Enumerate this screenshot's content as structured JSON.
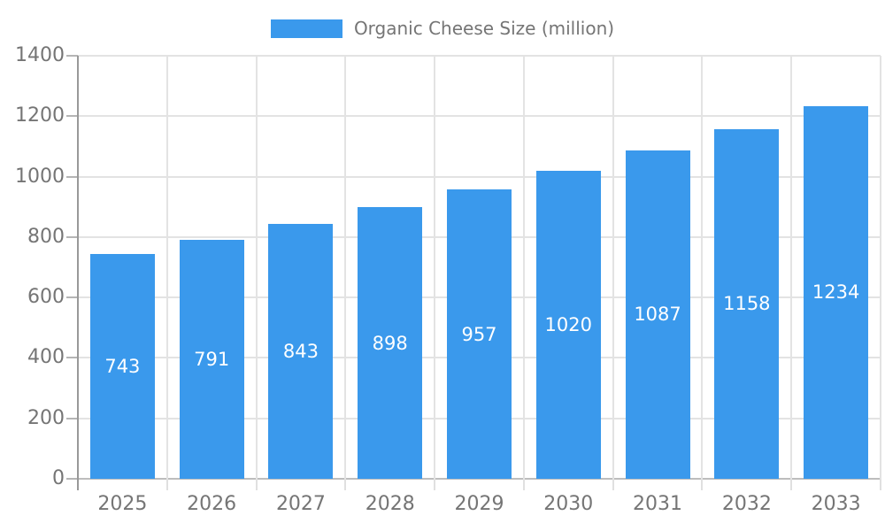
{
  "chart_data": {
    "type": "bar",
    "title": "Organic Cheese Size (million)",
    "categories": [
      "2025",
      "2026",
      "2027",
      "2028",
      "2029",
      "2030",
      "2031",
      "2032",
      "2033"
    ],
    "values": [
      743,
      791,
      843,
      898,
      957,
      1020,
      1087,
      1158,
      1234
    ],
    "xlabel": "",
    "ylabel": "",
    "ylim": [
      0,
      1400
    ],
    "yticks": [
      0,
      200,
      400,
      600,
      800,
      1000,
      1200,
      1400
    ],
    "grid": true,
    "legend_position": "top",
    "value_labels": "inside-middle",
    "colors": {
      "bar": "#3a99ec",
      "axis_text": "#757575",
      "gridline": "#e3e3e3",
      "y_axis_line": "#999999",
      "x_axis_line": "#bdbdbd",
      "bar_label_text": "#ffffff"
    }
  }
}
